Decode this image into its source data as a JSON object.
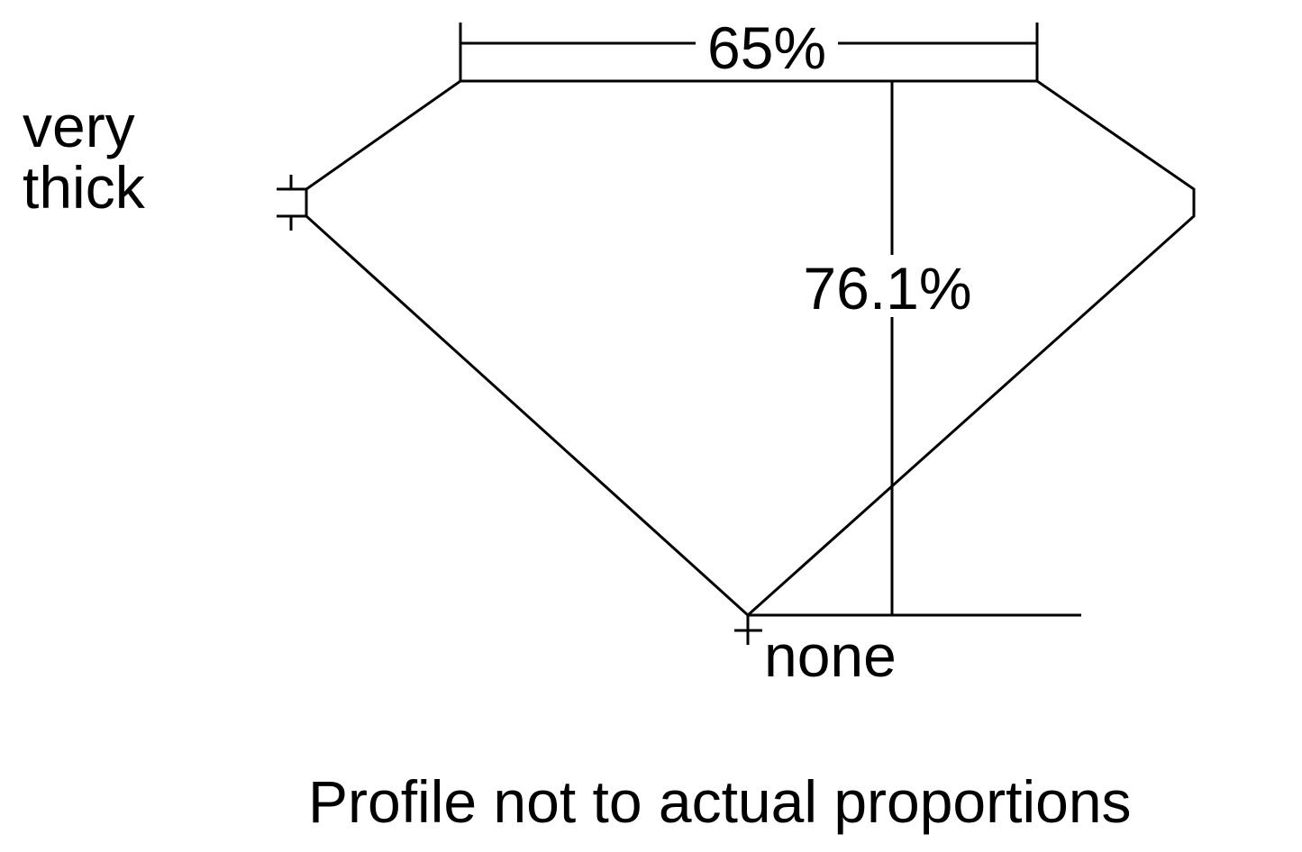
{
  "measurements": {
    "table_percent": "65%",
    "total_depth_percent": "76.1%"
  },
  "labels": {
    "girdle_line1": "very",
    "girdle_line2": "thick",
    "culet": "none"
  },
  "caption": "Profile not to actual proportions"
}
